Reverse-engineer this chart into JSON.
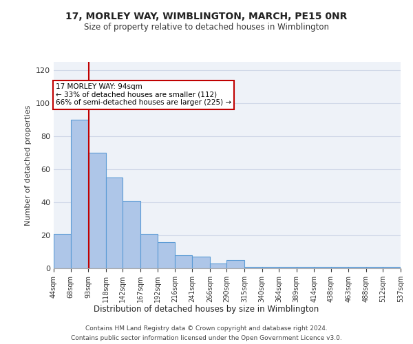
{
  "title1": "17, MORLEY WAY, WIMBLINGTON, MARCH, PE15 0NR",
  "title2": "Size of property relative to detached houses in Wimblington",
  "xlabel": "Distribution of detached houses by size in Wimblington",
  "ylabel": "Number of detached properties",
  "footnote1": "Contains HM Land Registry data © Crown copyright and database right 2024.",
  "footnote2": "Contains public sector information licensed under the Open Government Licence v3.0.",
  "annotation_line1": "17 MORLEY WAY: 94sqm",
  "annotation_line2": "← 33% of detached houses are smaller (112)",
  "annotation_line3": "66% of semi-detached houses are larger (225) →",
  "property_size": 94,
  "bin_edges": [
    44,
    68,
    93,
    118,
    142,
    167,
    192,
    216,
    241,
    266,
    290,
    315,
    340,
    364,
    389,
    414,
    438,
    463,
    488,
    512,
    537
  ],
  "bar_values": [
    21,
    90,
    70,
    55,
    41,
    21,
    16,
    8,
    7,
    3,
    5,
    1,
    1,
    1,
    1,
    1,
    1,
    1,
    1,
    1
  ],
  "bar_color": "#aec6e8",
  "bar_edge_color": "#5b9bd5",
  "vline_color": "#c00000",
  "annotation_box_edge": "#c00000",
  "grid_color": "#d0d8e8",
  "bg_color": "#eef2f8",
  "ylim": [
    0,
    125
  ],
  "yticks": [
    0,
    20,
    40,
    60,
    80,
    100,
    120
  ]
}
